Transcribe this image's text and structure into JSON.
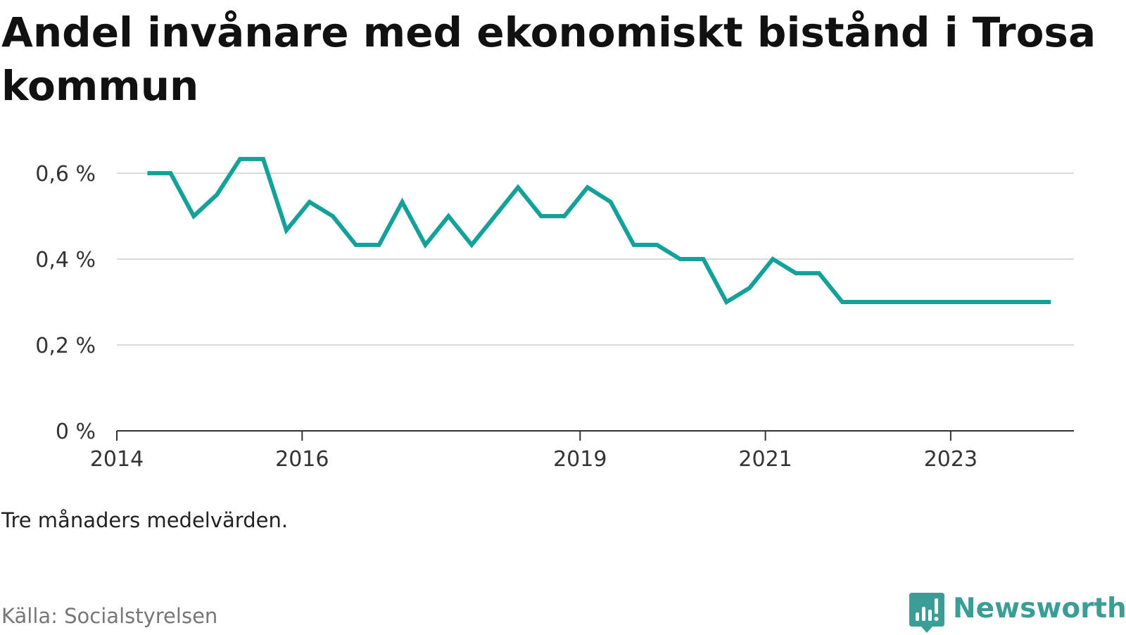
{
  "title": "Andel invånare med ekonomiskt bistånd i Trosa kommun",
  "note": "Tre månaders medelvärden.",
  "source": "Källa: Socialstyrelsen",
  "brand": {
    "name": "Newsworthy",
    "icon": "newsworthy-logo-icon",
    "color": "#3a9e97"
  },
  "colors": {
    "line": "#14a19a",
    "grid": "#d9d9d9",
    "axis": "#333333"
  },
  "chart_data": {
    "type": "line",
    "title": "Andel invånare med ekonomiskt bistånd i Trosa kommun",
    "xlabel": "",
    "ylabel": "",
    "xlim": [
      2014.0,
      2024.33
    ],
    "ylim": [
      0,
      0.6
    ],
    "grid": true,
    "y_ticks": [
      {
        "value": 0,
        "label": "0 %"
      },
      {
        "value": 0.2,
        "label": "0,2 %"
      },
      {
        "value": 0.4,
        "label": "0,4 %"
      },
      {
        "value": 0.6,
        "label": "0,6 %"
      }
    ],
    "x_ticks": [
      {
        "value": 2014,
        "label": "2014"
      },
      {
        "value": 2016,
        "label": "2016"
      },
      {
        "value": 2019,
        "label": "2019"
      },
      {
        "value": 2021,
        "label": "2021"
      },
      {
        "value": 2023,
        "label": "2023"
      }
    ],
    "series": [
      {
        "values": [
          {
            "x": 2014.33,
            "y": 0.6
          },
          {
            "x": 2014.58,
            "y": 0.6
          },
          {
            "x": 2014.83,
            "y": 0.5
          },
          {
            "x": 2015.08,
            "y": 0.55
          },
          {
            "x": 2015.33,
            "y": 0.633
          },
          {
            "x": 2015.58,
            "y": 0.633
          },
          {
            "x": 2015.83,
            "y": 0.467
          },
          {
            "x": 2016.08,
            "y": 0.533
          },
          {
            "x": 2016.33,
            "y": 0.5
          },
          {
            "x": 2016.58,
            "y": 0.433
          },
          {
            "x": 2016.83,
            "y": 0.433
          },
          {
            "x": 2017.08,
            "y": 0.533
          },
          {
            "x": 2017.33,
            "y": 0.433
          },
          {
            "x": 2017.58,
            "y": 0.5
          },
          {
            "x": 2017.83,
            "y": 0.433
          },
          {
            "x": 2018.08,
            "y": 0.5
          },
          {
            "x": 2018.33,
            "y": 0.567
          },
          {
            "x": 2018.58,
            "y": 0.5
          },
          {
            "x": 2018.83,
            "y": 0.5
          },
          {
            "x": 2019.08,
            "y": 0.567
          },
          {
            "x": 2019.33,
            "y": 0.533
          },
          {
            "x": 2019.58,
            "y": 0.433
          },
          {
            "x": 2019.83,
            "y": 0.433
          },
          {
            "x": 2020.08,
            "y": 0.4
          },
          {
            "x": 2020.33,
            "y": 0.4
          },
          {
            "x": 2020.58,
            "y": 0.3
          },
          {
            "x": 2020.83,
            "y": 0.333
          },
          {
            "x": 2021.08,
            "y": 0.4
          },
          {
            "x": 2021.33,
            "y": 0.367
          },
          {
            "x": 2021.58,
            "y": 0.367
          },
          {
            "x": 2021.83,
            "y": 0.3
          },
          {
            "x": 2022.08,
            "y": 0.3
          },
          {
            "x": 2022.33,
            "y": 0.3
          },
          {
            "x": 2022.58,
            "y": 0.3
          },
          {
            "x": 2022.83,
            "y": 0.3
          },
          {
            "x": 2023.08,
            "y": 0.3
          },
          {
            "x": 2023.33,
            "y": 0.3
          },
          {
            "x": 2023.58,
            "y": 0.3
          },
          {
            "x": 2023.83,
            "y": 0.3
          },
          {
            "x": 2024.08,
            "y": 0.3
          }
        ]
      }
    ]
  }
}
